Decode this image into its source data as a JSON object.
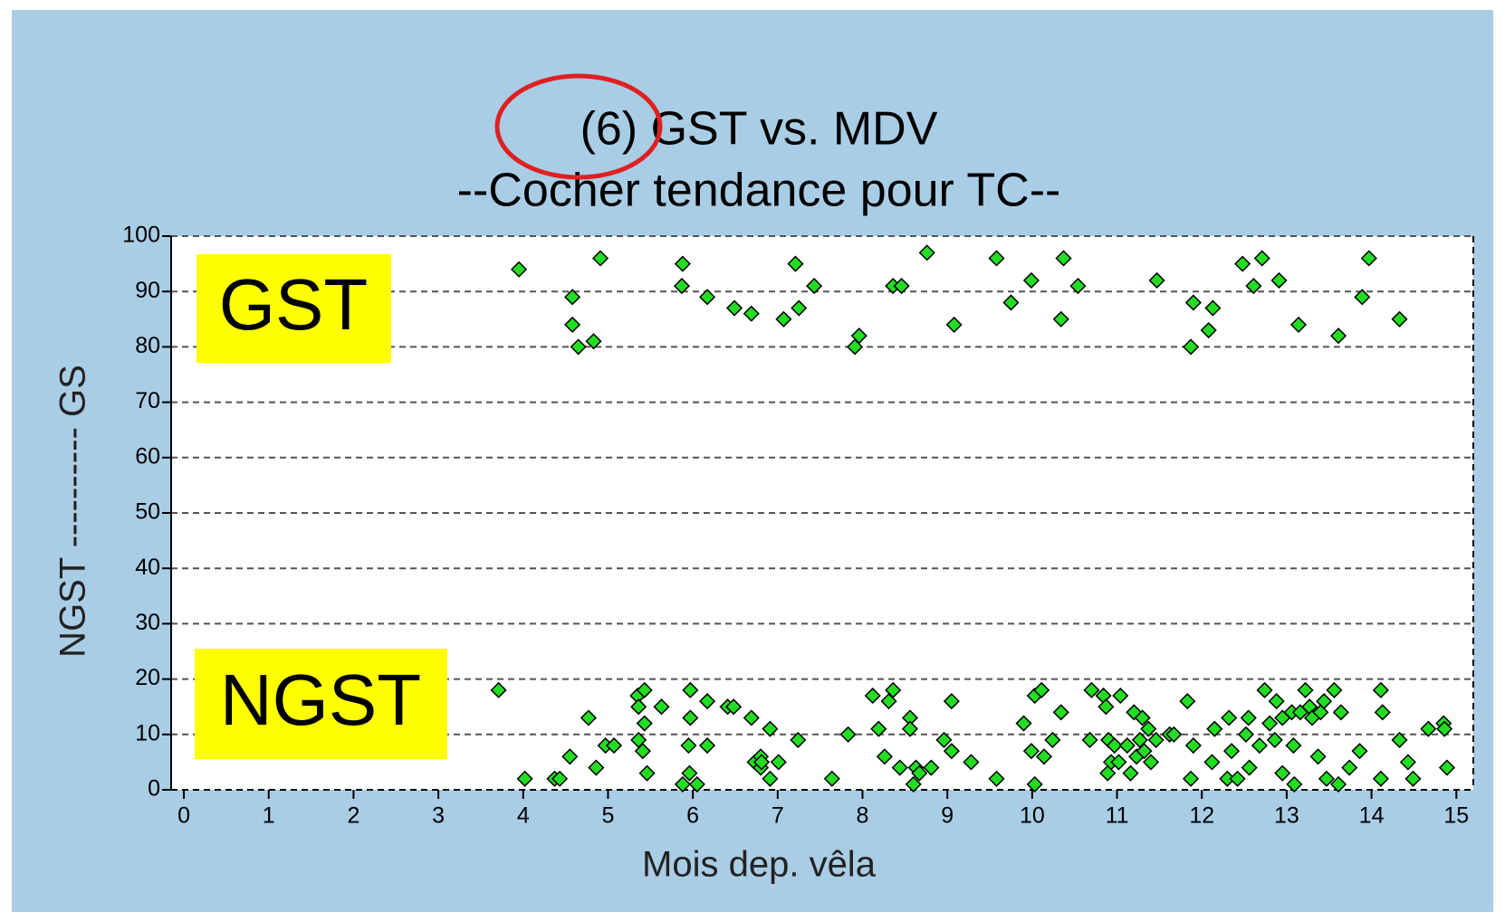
{
  "chart_data": {
    "type": "scatter",
    "title": "(6) GST vs. MDV",
    "subtitle": "--Cocher tendance pour TC--",
    "x_label": "Mois dep. vêla",
    "y_label": "NGST ---------- GS",
    "annotations": [
      "GST",
      "NGST"
    ],
    "color": "#22dd22",
    "grid": true,
    "xlim": [
      -0.15,
      15.2
    ],
    "ylim": [
      0,
      100
    ],
    "xticks": [
      0,
      1,
      2,
      3,
      4,
      5,
      6,
      7,
      8,
      9,
      10,
      11,
      12,
      13,
      14,
      15
    ],
    "yticks": [
      0,
      10,
      20,
      30,
      40,
      50,
      60,
      70,
      80,
      90,
      100
    ],
    "x": [
      3.95,
      4.58,
      4.58,
      4.65,
      4.83,
      4.91,
      5.88,
      5.87,
      6.17,
      6.49,
      6.69,
      7.07,
      7.21,
      7.25,
      7.43,
      7.91,
      7.96,
      8.36,
      8.46,
      8.76,
      9.08,
      9.58,
      9.75,
      9.99,
      10.34,
      10.37,
      10.54,
      11.47,
      11.87,
      11.9,
      12.08,
      12.13,
      12.48,
      12.61,
      12.71,
      12.91,
      13.14,
      13.61,
      13.89,
      13.97,
      14.33,
      3.71,
      4.02,
      4.37,
      4.43,
      4.55,
      4.77,
      4.86,
      4.97,
      5.07,
      5.35,
      5.43,
      5.36,
      5.43,
      5.36,
      5.41,
      5.46,
      5.63,
      5.88,
      5.96,
      5.97,
      5.97,
      5.95,
      6.05,
      6.17,
      6.17,
      6.41,
      6.48,
      6.69,
      6.73,
      6.8,
      6.8,
      6.81,
      6.91,
      6.91,
      7.01,
      7.24,
      7.64,
      7.83,
      8.12,
      8.19,
      8.31,
      8.36,
      8.26,
      8.44,
      8.56,
      8.56,
      8.63,
      8.6,
      8.67,
      8.81,
      8.96,
      9.05,
      9.05,
      9.28,
      9.58,
      9.9,
      9.99,
      10.03,
      10.11,
      10.03,
      10.14,
      10.24,
      10.34,
      10.68,
      10.7,
      10.84,
      10.87,
      10.9,
      10.93,
      10.89,
      10.97,
      11.04,
      11.02,
      11.12,
      11.16,
      11.2,
      11.23,
      11.27,
      11.3,
      11.32,
      11.37,
      11.4,
      11.46,
      11.62,
      11.67,
      11.83,
      11.87,
      11.9,
      12.12,
      12.15,
      12.32,
      12.35,
      12.3,
      12.42,
      12.52,
      12.55,
      12.56,
      12.68,
      12.74,
      12.8,
      12.86,
      12.88,
      12.95,
      12.95,
      13.06,
      13.08,
      13.09,
      13.16,
      13.22,
      13.27,
      13.3,
      13.37,
      13.4,
      13.44,
      13.47,
      13.56,
      13.61,
      13.64,
      13.74,
      13.86,
      14.11,
      14.13,
      14.11,
      14.33,
      14.43,
      14.49,
      14.67,
      14.85,
      14.86,
      14.89
    ],
    "values": [
      94,
      84,
      89,
      80,
      81,
      96,
      95,
      91,
      89,
      87,
      86,
      85,
      95,
      87,
      91,
      80,
      82,
      91,
      91,
      97,
      84,
      96,
      88,
      92,
      85,
      96,
      91,
      92,
      80,
      88,
      83,
      87,
      95,
      91,
      96,
      92,
      84,
      82,
      89,
      96,
      85,
      18,
      2,
      2,
      2,
      6,
      13,
      4,
      8,
      8,
      17,
      18,
      15,
      12,
      9,
      7,
      3,
      15,
      1,
      3,
      18,
      13,
      8,
      1,
      16,
      8,
      15,
      15,
      13,
      5,
      6,
      4,
      5,
      11,
      2,
      5,
      9,
      2,
      10,
      17,
      11,
      16,
      18,
      6,
      4,
      13,
      11,
      4,
      1,
      3,
      4,
      9,
      16,
      7,
      5,
      2,
      12,
      7,
      17,
      18,
      1,
      6,
      9,
      14,
      9,
      18,
      17,
      15,
      9,
      5,
      3,
      8,
      17,
      5,
      8,
      3,
      14,
      6,
      9,
      13,
      7,
      11,
      5,
      9,
      10,
      10,
      16,
      2,
      8,
      5,
      11,
      13,
      7,
      2,
      2,
      10,
      13,
      4,
      8,
      18,
      12,
      9,
      16,
      13,
      3,
      14,
      8,
      1,
      14,
      18,
      15,
      13,
      6,
      14,
      16,
      2,
      18,
      1,
      14,
      4,
      7,
      18,
      14,
      2,
      9,
      5,
      2,
      11,
      12,
      11,
      4
    ]
  }
}
